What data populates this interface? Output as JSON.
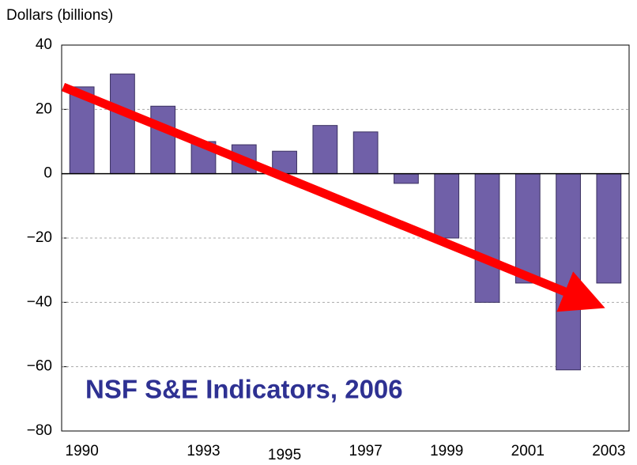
{
  "chart_data": {
    "type": "bar",
    "y_axis_label": "Dollars (billions)",
    "annotation": "NSF S&E Indicators, 2006",
    "categories": [
      "1990",
      null,
      null,
      "1993",
      null,
      "1995",
      null,
      "1997",
      null,
      "1999",
      null,
      "2001",
      null,
      "2003"
    ],
    "values": [
      27,
      31,
      21,
      10,
      9,
      7,
      15,
      13,
      -3,
      -20,
      -40,
      -34,
      -61,
      -34
    ],
    "color": "#7060a8",
    "ylim": [
      -80,
      40
    ],
    "yticks": [
      {
        "value": -80,
        "label": "−80"
      },
      {
        "value": -60,
        "label": "−60"
      },
      {
        "value": -40,
        "label": "−40"
      },
      {
        "value": -20,
        "label": "−20"
      },
      0,
      20,
      40
    ],
    "grid": true
  }
}
